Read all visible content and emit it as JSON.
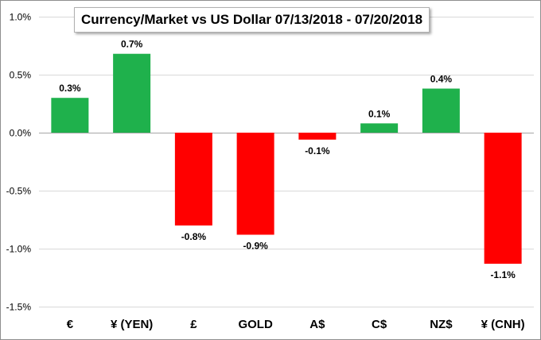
{
  "chart_data": {
    "type": "bar",
    "title": "Currency/Market vs US Dollar 07/13/2018 - 07/20/2018",
    "categories": [
      "€",
      "¥ (YEN)",
      "£",
      "GOLD",
      "A$",
      "C$",
      "NZ$",
      "¥ (CNH)"
    ],
    "values": [
      0.3,
      0.7,
      -0.8,
      -0.9,
      -0.1,
      0.1,
      0.4,
      -1.1
    ],
    "bar_heights_estimated": [
      0.3,
      0.68,
      -0.8,
      -0.88,
      -0.06,
      0.08,
      0.38,
      -1.13
    ],
    "data_labels": [
      "0.3%",
      "0.7%",
      "-0.8%",
      "-0.9%",
      "-0.1%",
      "0.1%",
      "0.4%",
      "-1.1%"
    ],
    "y_ticks": [
      1.0,
      0.5,
      0.0,
      -0.5,
      -1.0,
      -1.5
    ],
    "y_tick_labels": [
      "1.0%",
      "0.5%",
      "0.0%",
      "-0.5%",
      "-1.0%",
      "-1.5%"
    ],
    "ylim": [
      -1.5,
      1.0
    ],
    "xlabel": "",
    "ylabel": "",
    "grid": true,
    "legend": "none",
    "colors": {
      "positive": "#1fb14c",
      "negative": "#ff0000"
    }
  }
}
